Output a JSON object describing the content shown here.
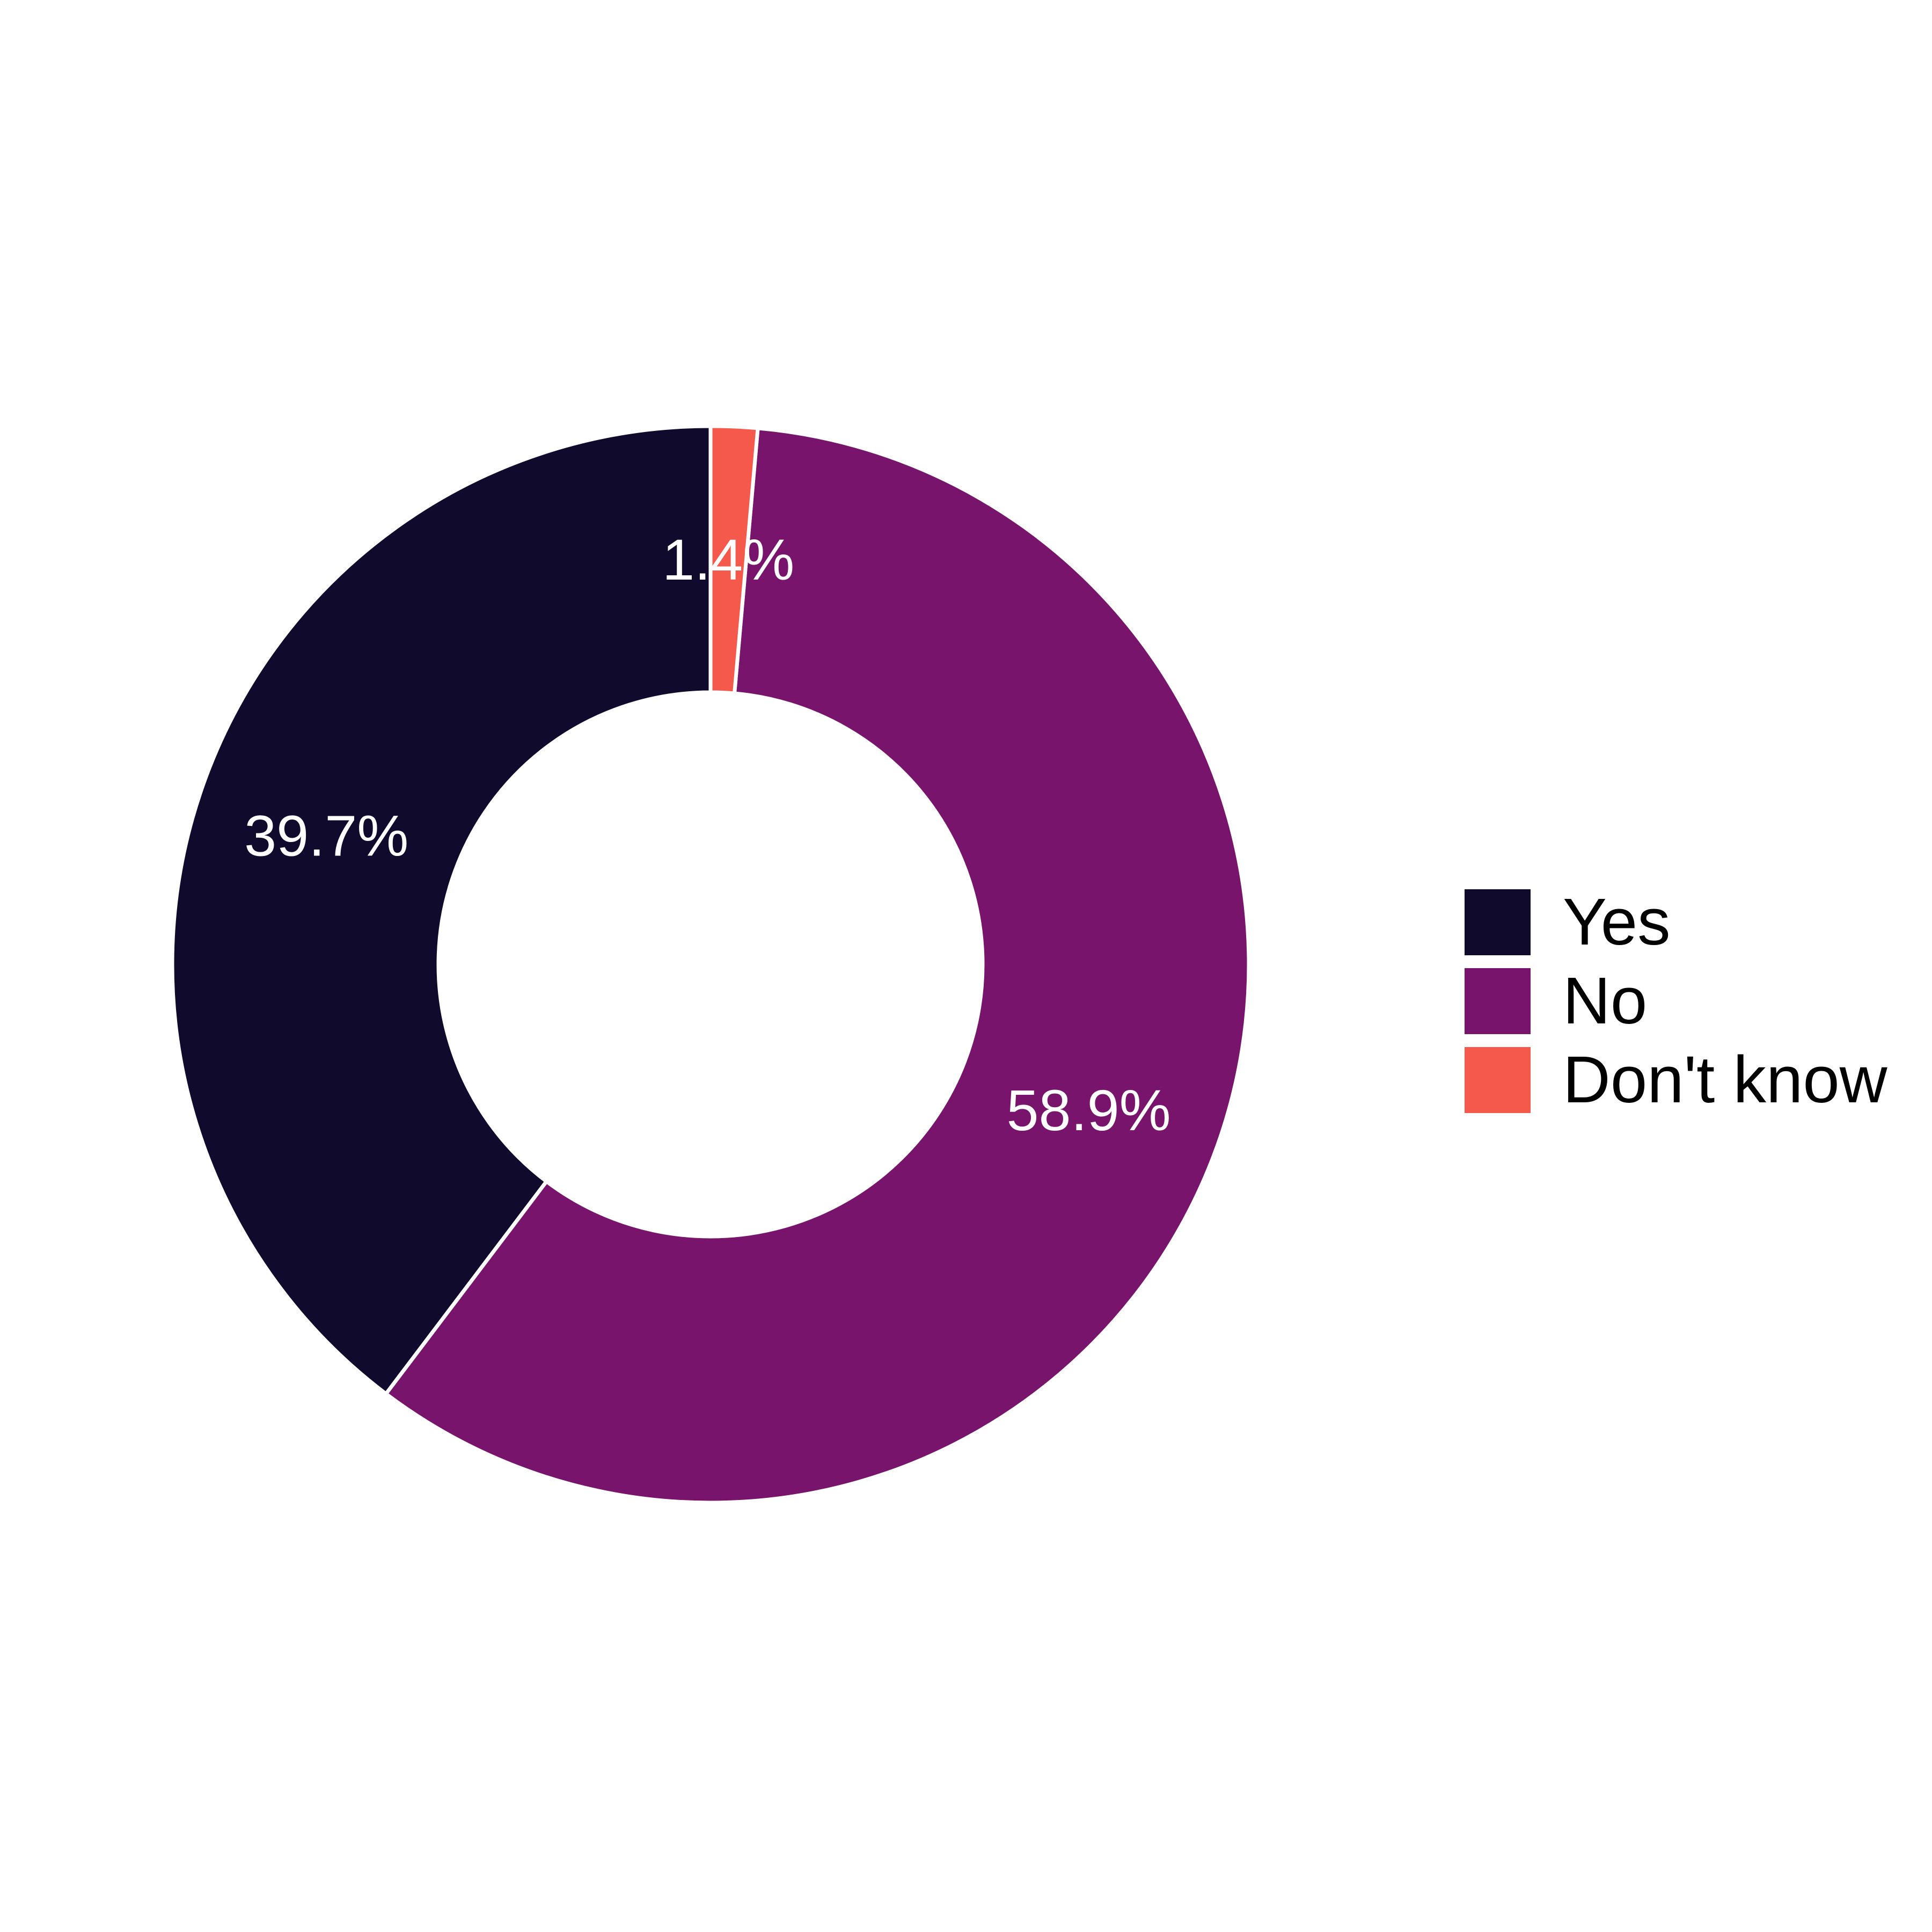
{
  "chart_data": {
    "type": "pie",
    "variant": "donut",
    "categories": [
      "Yes",
      "No",
      "Don't know"
    ],
    "values": [
      39.7,
      58.9,
      1.4
    ],
    "value_labels": [
      "39.7%",
      "58.9%",
      "1.4%"
    ],
    "colors": [
      "#100B2D",
      "#78146B",
      "#F4594B"
    ],
    "slice_border_color": "#FFFFFF",
    "start_angle_deg": 0,
    "direction": "counter-clockwise",
    "legend_position": "right"
  }
}
